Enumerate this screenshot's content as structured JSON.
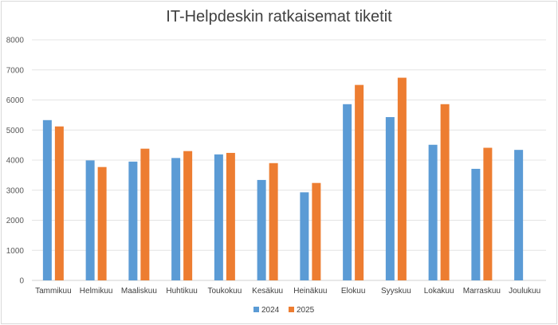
{
  "chart_data": {
    "type": "bar",
    "title": "IT-Helpdeskin ratkaisemat tiketit",
    "xlabel": "",
    "ylabel": "",
    "ylim": [
      0,
      8000
    ],
    "yticks": [
      0,
      1000,
      2000,
      3000,
      4000,
      5000,
      6000,
      7000,
      8000
    ],
    "grid": true,
    "legend": "bottom",
    "categories": [
      "Tammikuu",
      "Helmikuu",
      "Maaliskuu",
      "Huhtikuu",
      "Toukokuu",
      "Kesäkuu",
      "Heinäkuu",
      "Elokuu",
      "Syyskuu",
      "Lokakuu",
      "Marraskuu",
      "Joulukuu"
    ],
    "series": [
      {
        "name": "2024",
        "color": "#5b9bd5",
        "values": [
          5330,
          3990,
          3950,
          4070,
          4190,
          3340,
          2930,
          5860,
          5430,
          4510,
          3710,
          4340
        ]
      },
      {
        "name": "2025",
        "color": "#ed7d31",
        "values": [
          5120,
          3770,
          4380,
          4300,
          4240,
          3900,
          3240,
          6500,
          6740,
          5860,
          4410,
          null
        ]
      }
    ]
  }
}
